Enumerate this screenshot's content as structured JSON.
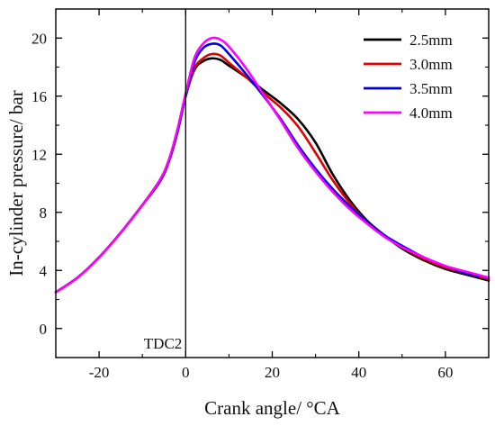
{
  "chart_data": {
    "type": "line",
    "title": "",
    "xlabel": "Crank angle/ °CA",
    "ylabel": "In-cylinder pressure/ bar",
    "xlim": [
      -30,
      70
    ],
    "ylim": [
      -2,
      22
    ],
    "xticks": [
      -20,
      0,
      20,
      40,
      60
    ],
    "yticks": [
      0,
      4,
      8,
      12,
      16,
      20
    ],
    "xtick_labels": [
      "-20",
      "0",
      "20",
      "40",
      "60"
    ],
    "ytick_labels": [
      "0",
      "4",
      "8",
      "12",
      "16",
      "20"
    ],
    "grid": false,
    "legend_position": "top-right",
    "annotations": [
      {
        "text": "TDC2",
        "x": 0
      }
    ],
    "series": [
      {
        "name": "2.5mm",
        "color": "#000000",
        "x": [
          -30,
          -25,
          -20,
          -15,
          -10,
          -6,
          -4,
          -2,
          0,
          2,
          4,
          6,
          8,
          10,
          14,
          18,
          22,
          26,
          30,
          34,
          38,
          42,
          46,
          50,
          55,
          60,
          65,
          70
        ],
        "y": [
          2.5,
          3.5,
          4.9,
          6.6,
          8.5,
          10.2,
          11.5,
          13.5,
          16.0,
          17.8,
          18.4,
          18.6,
          18.5,
          18.1,
          17.3,
          16.4,
          15.5,
          14.4,
          12.8,
          10.6,
          8.8,
          7.4,
          6.4,
          5.5,
          4.7,
          4.1,
          3.7,
          3.3
        ]
      },
      {
        "name": "3.0mm",
        "color": "#e00000",
        "x": [
          -30,
          -25,
          -20,
          -15,
          -10,
          -6,
          -4,
          -2,
          0,
          2,
          4,
          6,
          8,
          10,
          14,
          18,
          22,
          26,
          30,
          34,
          38,
          42,
          46,
          50,
          55,
          60,
          65,
          70
        ],
        "y": [
          2.5,
          3.5,
          4.9,
          6.6,
          8.5,
          10.1,
          11.4,
          13.4,
          16.0,
          17.9,
          18.6,
          18.9,
          18.8,
          18.3,
          17.3,
          16.2,
          15.2,
          13.9,
          12.1,
          10.2,
          8.6,
          7.3,
          6.4,
          5.6,
          4.8,
          4.2,
          3.8,
          3.4
        ]
      },
      {
        "name": "3.5mm",
        "color": "#0000e0",
        "x": [
          -30,
          -25,
          -20,
          -15,
          -10,
          -6,
          -4,
          -2,
          0,
          2,
          4,
          6,
          8,
          10,
          14,
          18,
          22,
          26,
          30,
          34,
          38,
          42,
          46,
          50,
          55,
          60,
          65,
          70
        ],
        "y": [
          2.5,
          3.5,
          4.9,
          6.6,
          8.5,
          10.1,
          11.4,
          13.4,
          16.0,
          18.3,
          19.3,
          19.6,
          19.5,
          18.9,
          17.5,
          16.0,
          14.4,
          12.6,
          11.0,
          9.6,
          8.4,
          7.3,
          6.4,
          5.7,
          4.9,
          4.3,
          3.8,
          3.5
        ]
      },
      {
        "name": "4.0mm",
        "color": "#ff00ff",
        "x": [
          -30,
          -25,
          -20,
          -15,
          -10,
          -6,
          -4,
          -2,
          0,
          2,
          4,
          6,
          8,
          10,
          14,
          18,
          22,
          26,
          30,
          34,
          38,
          42,
          46,
          50,
          55,
          60,
          65,
          70
        ],
        "y": [
          2.5,
          3.5,
          4.9,
          6.6,
          8.5,
          10.2,
          11.5,
          13.6,
          16.2,
          18.6,
          19.6,
          20.0,
          19.9,
          19.4,
          17.9,
          16.1,
          14.3,
          12.4,
          10.8,
          9.4,
          8.2,
          7.2,
          6.3,
          5.6,
          4.9,
          4.3,
          3.9,
          3.5
        ]
      }
    ]
  }
}
